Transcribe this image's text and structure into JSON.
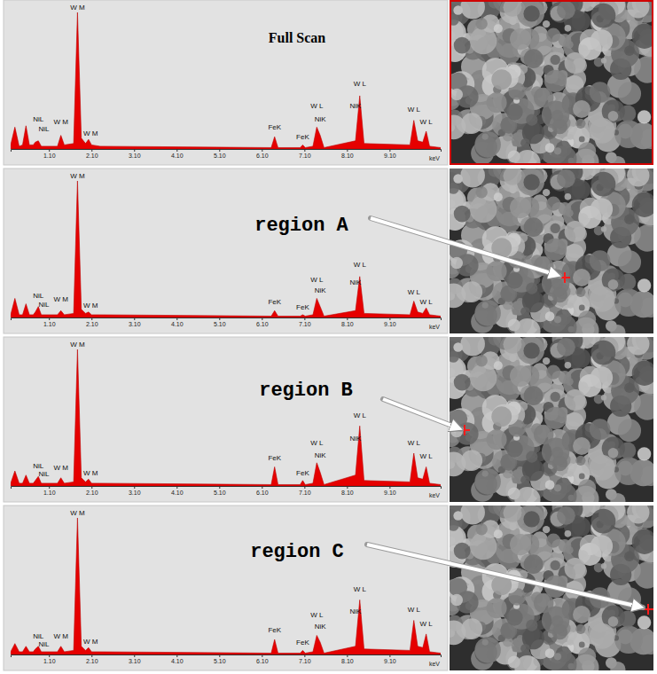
{
  "chart_data": [
    {
      "type": "area",
      "title": "Full Scan",
      "x_label": "keV",
      "color": "#e60000",
      "tick_labels": "x",
      "grid": false,
      "xlim": [
        0.2,
        10.3
      ],
      "ylim": [
        0,
        100
      ],
      "xticks": [
        {
          "value": 1.1,
          "label": "1.10"
        },
        {
          "value": 2.1,
          "label": "2.10"
        },
        {
          "value": 3.1,
          "label": "3.10"
        },
        {
          "value": 4.1,
          "label": "4.10"
        },
        {
          "value": 5.1,
          "label": "5.10"
        },
        {
          "value": 6.1,
          "label": "6.10"
        },
        {
          "value": 7.1,
          "label": "7.10"
        },
        {
          "value": 8.1,
          "label": "8.10"
        },
        {
          "value": 9.1,
          "label": "9.10"
        }
      ],
      "x": [
        0.2,
        0.3,
        0.4,
        0.48,
        0.56,
        0.64,
        0.73,
        0.78,
        0.85,
        0.92,
        1.3,
        1.38,
        1.46,
        1.68,
        1.77,
        1.86,
        1.96,
        2.03,
        2.1,
        2.3,
        6.32,
        6.4,
        6.48,
        7.0,
        7.06,
        7.12,
        7.3,
        7.39,
        7.47,
        7.56,
        8.3,
        8.4,
        8.5,
        9.58,
        9.67,
        9.76,
        9.88,
        9.96,
        10.04,
        10.3
      ],
      "values": [
        3,
        16,
        2,
        3,
        17,
        3,
        3,
        5,
        6,
        2,
        2,
        10,
        3,
        4,
        100,
        8,
        4,
        7,
        3,
        2,
        1,
        9,
        1,
        1,
        3,
        1,
        2,
        16,
        10,
        1,
        6,
        39,
        4,
        3,
        21,
        6,
        5,
        13,
        2,
        1
      ],
      "annotations": [
        {
          "text": "NiL",
          "x": 0.85,
          "y": 20
        },
        {
          "text": "NiL",
          "x": 0.98,
          "y": 13
        },
        {
          "text": "W M",
          "x": 1.38,
          "y": 18
        },
        {
          "text": "W M",
          "x": 1.77,
          "y": 102
        },
        {
          "text": "W M",
          "x": 2.08,
          "y": 10
        },
        {
          "text": "FeK",
          "x": 6.4,
          "y": 14
        },
        {
          "text": "FeK",
          "x": 7.06,
          "y": 7
        },
        {
          "text": "W L",
          "x": 7.39,
          "y": 30
        },
        {
          "text": "NiK",
          "x": 7.47,
          "y": 20
        },
        {
          "text": "W L",
          "x": 8.4,
          "y": 46
        },
        {
          "text": "NiK",
          "x": 8.3,
          "y": 30
        },
        {
          "text": "W L",
          "x": 9.67,
          "y": 27
        },
        {
          "text": "W L",
          "x": 9.96,
          "y": 18
        }
      ]
    },
    {
      "type": "area",
      "title": "region A",
      "x_label": "keV",
      "color": "#e60000",
      "tick_labels": "x",
      "grid": false,
      "xlim": [
        0.2,
        10.3
      ],
      "ylim": [
        0,
        100
      ],
      "xticks": [
        {
          "value": 1.1,
          "label": "1.10"
        },
        {
          "value": 2.1,
          "label": "2.10"
        },
        {
          "value": 3.1,
          "label": "3.10"
        },
        {
          "value": 4.1,
          "label": "4.10"
        },
        {
          "value": 5.1,
          "label": "5.10"
        },
        {
          "value": 6.1,
          "label": "6.10"
        },
        {
          "value": 7.1,
          "label": "7.10"
        },
        {
          "value": 8.1,
          "label": "8.10"
        },
        {
          "value": 9.1,
          "label": "9.10"
        }
      ],
      "x": [
        0.2,
        0.3,
        0.4,
        0.48,
        0.56,
        0.64,
        0.73,
        0.78,
        0.85,
        0.92,
        1.3,
        1.38,
        1.46,
        1.68,
        1.77,
        1.86,
        1.96,
        2.03,
        2.1,
        2.3,
        6.32,
        6.4,
        6.48,
        7.0,
        7.06,
        7.12,
        7.3,
        7.39,
        7.47,
        7.56,
        8.3,
        8.4,
        8.5,
        9.58,
        9.67,
        9.76,
        9.88,
        9.96,
        10.04,
        10.3
      ],
      "values": [
        2,
        14,
        2,
        2,
        10,
        2,
        2,
        4,
        8,
        2,
        2,
        5,
        2,
        3,
        100,
        6,
        3,
        4,
        2,
        2,
        1,
        5,
        1,
        1,
        2,
        1,
        2,
        14,
        8,
        1,
        5,
        30,
        3,
        2,
        12,
        4,
        3,
        7,
        2,
        1
      ],
      "annotations": [
        {
          "text": "NiL",
          "x": 0.85,
          "y": 14
        },
        {
          "text": "NiL",
          "x": 0.98,
          "y": 8
        },
        {
          "text": "W M",
          "x": 1.38,
          "y": 12
        },
        {
          "text": "W M",
          "x": 1.77,
          "y": 102
        },
        {
          "text": "W M",
          "x": 2.08,
          "y": 7
        },
        {
          "text": "FeK",
          "x": 6.4,
          "y": 10
        },
        {
          "text": "FeK",
          "x": 7.06,
          "y": 6
        },
        {
          "text": "W L",
          "x": 7.39,
          "y": 26
        },
        {
          "text": "NiK",
          "x": 7.47,
          "y": 18
        },
        {
          "text": "W L",
          "x": 8.4,
          "y": 37
        },
        {
          "text": "NiK",
          "x": 8.3,
          "y": 24
        },
        {
          "text": "W L",
          "x": 9.67,
          "y": 17
        },
        {
          "text": "W L",
          "x": 9.96,
          "y": 10
        }
      ]
    },
    {
      "type": "area",
      "title": "region B",
      "x_label": "keV",
      "color": "#e60000",
      "tick_labels": "x",
      "grid": false,
      "xlim": [
        0.2,
        10.3
      ],
      "ylim": [
        0,
        100
      ],
      "xticks": [
        {
          "value": 1.1,
          "label": "1.10"
        },
        {
          "value": 2.1,
          "label": "2.10"
        },
        {
          "value": 3.1,
          "label": "3.10"
        },
        {
          "value": 4.1,
          "label": "4.10"
        },
        {
          "value": 5.1,
          "label": "5.10"
        },
        {
          "value": 6.1,
          "label": "6.10"
        },
        {
          "value": 7.1,
          "label": "7.10"
        },
        {
          "value": 8.1,
          "label": "8.10"
        },
        {
          "value": 9.1,
          "label": "9.10"
        }
      ],
      "x": [
        0.2,
        0.3,
        0.4,
        0.48,
        0.56,
        0.64,
        0.73,
        0.78,
        0.85,
        0.92,
        1.3,
        1.38,
        1.46,
        1.68,
        1.77,
        1.86,
        1.96,
        2.03,
        2.1,
        2.3,
        6.32,
        6.4,
        6.48,
        7.0,
        7.06,
        7.12,
        7.3,
        7.39,
        7.47,
        7.56,
        8.3,
        8.4,
        8.5,
        9.58,
        9.67,
        9.76,
        9.88,
        9.96,
        10.04,
        10.3
      ],
      "values": [
        2,
        11,
        2,
        2,
        8,
        2,
        2,
        4,
        7,
        2,
        2,
        6,
        2,
        3,
        100,
        6,
        3,
        5,
        2,
        2,
        1,
        14,
        1,
        1,
        4,
        1,
        2,
        17,
        10,
        1,
        8,
        44,
        4,
        3,
        24,
        6,
        5,
        14,
        2,
        1
      ],
      "annotations": [
        {
          "text": "NiL",
          "x": 0.85,
          "y": 13
        },
        {
          "text": "NiL",
          "x": 0.98,
          "y": 7
        },
        {
          "text": "W M",
          "x": 1.38,
          "y": 12
        },
        {
          "text": "W M",
          "x": 1.77,
          "y": 102
        },
        {
          "text": "W M",
          "x": 2.08,
          "y": 8
        },
        {
          "text": "FeK",
          "x": 6.4,
          "y": 19
        },
        {
          "text": "FeK",
          "x": 7.06,
          "y": 8
        },
        {
          "text": "W L",
          "x": 7.39,
          "y": 30
        },
        {
          "text": "NiK",
          "x": 7.47,
          "y": 21
        },
        {
          "text": "W L",
          "x": 8.4,
          "y": 50
        },
        {
          "text": "NiK",
          "x": 8.3,
          "y": 33
        },
        {
          "text": "W L",
          "x": 9.67,
          "y": 30
        },
        {
          "text": "W L",
          "x": 9.96,
          "y": 20
        }
      ]
    },
    {
      "type": "area",
      "title": "region C",
      "x_label": "keV",
      "color": "#e60000",
      "tick_labels": "x",
      "grid": false,
      "xlim": [
        0.2,
        10.3
      ],
      "ylim": [
        0,
        100
      ],
      "xticks": [
        {
          "value": 1.1,
          "label": "1.10"
        },
        {
          "value": 2.1,
          "label": "2.10"
        },
        {
          "value": 3.1,
          "label": "3.10"
        },
        {
          "value": 4.1,
          "label": "4.10"
        },
        {
          "value": 5.1,
          "label": "5.10"
        },
        {
          "value": 6.1,
          "label": "6.10"
        },
        {
          "value": 7.1,
          "label": "7.10"
        },
        {
          "value": 8.1,
          "label": "8.10"
        },
        {
          "value": 9.1,
          "label": "9.10"
        }
      ],
      "x": [
        0.2,
        0.3,
        0.4,
        0.48,
        0.56,
        0.64,
        0.73,
        0.78,
        0.85,
        0.92,
        1.3,
        1.38,
        1.46,
        1.68,
        1.77,
        1.86,
        1.96,
        2.03,
        2.1,
        2.3,
        6.32,
        6.4,
        6.48,
        7.0,
        7.06,
        7.12,
        7.3,
        7.39,
        7.47,
        7.56,
        8.3,
        8.4,
        8.5,
        9.58,
        9.67,
        9.76,
        9.88,
        9.96,
        10.04,
        10.3
      ],
      "values": [
        2,
        8,
        2,
        2,
        6,
        2,
        2,
        4,
        6,
        2,
        2,
        6,
        2,
        3,
        100,
        6,
        3,
        5,
        2,
        2,
        1,
        11,
        1,
        1,
        3,
        1,
        2,
        14,
        9,
        1,
        6,
        40,
        4,
        3,
        25,
        6,
        5,
        15,
        2,
        1
      ],
      "annotations": [
        {
          "text": "NiL",
          "x": 0.85,
          "y": 12
        },
        {
          "text": "NiL",
          "x": 0.98,
          "y": 6
        },
        {
          "text": "W M",
          "x": 1.38,
          "y": 12
        },
        {
          "text": "W M",
          "x": 1.77,
          "y": 102
        },
        {
          "text": "W M",
          "x": 2.08,
          "y": 8
        },
        {
          "text": "FeK",
          "x": 6.4,
          "y": 16
        },
        {
          "text": "FeK",
          "x": 7.06,
          "y": 7
        },
        {
          "text": "W L",
          "x": 7.39,
          "y": 27
        },
        {
          "text": "NiK",
          "x": 7.47,
          "y": 19
        },
        {
          "text": "W L",
          "x": 8.4,
          "y": 46
        },
        {
          "text": "NiK",
          "x": 8.3,
          "y": 30
        },
        {
          "text": "W L",
          "x": 9.67,
          "y": 31
        },
        {
          "text": "W L",
          "x": 9.96,
          "y": 21
        }
      ]
    }
  ]
}
